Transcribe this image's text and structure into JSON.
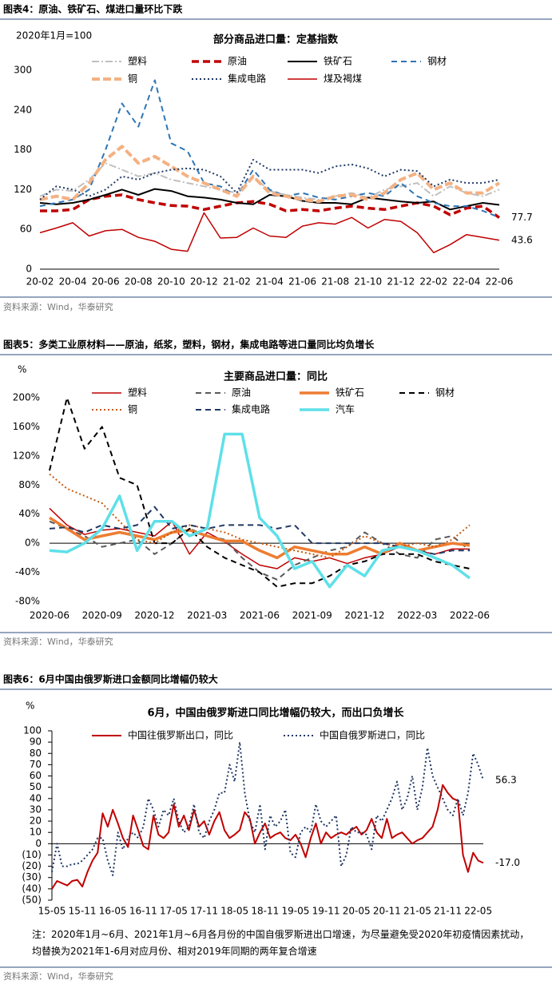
{
  "figures": [
    {
      "header": "图表4：原油、铁矿石、煤进口量环比下跌",
      "source": "资料来源：Wind，华泰研究"
    },
    {
      "header": "图表5：多类工业原材料——原油，纸浆，塑料，钢材，集成电路等进口量同比均负增长",
      "source": "资料来源：Wind，华泰研究"
    },
    {
      "header": "图表6：6月中国由俄罗斯进口金额同比增幅仍较大",
      "source": "资料来源：Wind，华泰研究",
      "note": "注：2020年1月~6月、2021年1月~6月各月份的中国自俄罗斯进出口增速，为尽量避免受2020年初疫情因素扰动，均替换为2021年1-6月对应月份、相对2019年同期的两年复合增速"
    }
  ],
  "chart_data": [
    {
      "type": "line",
      "title": "部分商品进口量：定基指数",
      "y_label": "2020年1月=100",
      "categories": [
        "20-02",
        null,
        "20-04",
        null,
        "20-06",
        null,
        "20-08",
        null,
        "20-10",
        null,
        "20-12",
        null,
        "21-02",
        null,
        "21-04",
        null,
        "21-06",
        null,
        "21-08",
        null,
        "21-10",
        null,
        "21-12",
        null,
        "22-02",
        null,
        "22-04",
        null,
        "22-06"
      ],
      "ylim": [
        0,
        300
      ],
      "yticks": [
        0,
        60,
        120,
        180,
        240,
        300
      ],
      "grid": false,
      "series": [
        {
          "name": "塑料",
          "color": "#bfbfbf",
          "style": "dashdot",
          "values": [
            110,
            120,
            118,
            135,
            160,
            150,
            140,
            145,
            135,
            130,
            125,
            120,
            115,
            140,
            118,
            112,
            108,
            105,
            110,
            115,
            108,
            120,
            125,
            130,
            110,
            125,
            115,
            110,
            120
          ]
        },
        {
          "name": "原油",
          "color": "#c00000",
          "style": "thickdash",
          "end_label": true,
          "values": [
            88,
            88,
            90,
            105,
            110,
            112,
            105,
            100,
            96,
            95,
            90,
            95,
            100,
            102,
            98,
            88,
            90,
            88,
            92,
            95,
            92,
            90,
            95,
            100,
            95,
            82,
            92,
            95,
            77.7
          ]
        },
        {
          "name": "铁矿石",
          "color": "#000000",
          "style": "solid",
          "values": [
            100,
            98,
            100,
            105,
            112,
            120,
            112,
            121,
            118,
            110,
            108,
            105,
            100,
            98,
            112,
            110,
            103,
            100,
            100,
            98,
            108,
            105,
            102,
            100,
            102,
            90,
            95,
            100,
            97
          ]
        },
        {
          "name": "钢材",
          "color": "#2e75b6",
          "style": "dash",
          "values": [
            95,
            100,
            105,
            120,
            180,
            250,
            215,
            285,
            190,
            178,
            130,
            125,
            110,
            150,
            120,
            110,
            115,
            108,
            105,
            110,
            115,
            110,
            130,
            110,
            100,
            95,
            95,
            88,
            78
          ]
        },
        {
          "name": "铜",
          "color": "#f4b183",
          "style": "double",
          "values": [
            105,
            110,
            105,
            130,
            165,
            185,
            160,
            170,
            155,
            140,
            130,
            120,
            110,
            140,
            115,
            110,
            105,
            102,
            110,
            112,
            105,
            115,
            135,
            145,
            120,
            130,
            115,
            115,
            130
          ]
        },
        {
          "name": "集成电路",
          "color": "#1f3864",
          "style": "dot",
          "values": [
            105,
            125,
            120,
            110,
            120,
            140,
            135,
            145,
            150,
            152,
            150,
            140,
            115,
            165,
            150,
            150,
            150,
            145,
            155,
            158,
            152,
            140,
            150,
            148,
            125,
            135,
            130,
            130,
            135
          ]
        },
        {
          "name": "煤及褐煤",
          "color": "#c00000",
          "style": "thin",
          "end_label": true,
          "values": [
            55,
            62,
            70,
            50,
            58,
            60,
            48,
            42,
            30,
            27,
            85,
            47,
            48,
            62,
            50,
            48,
            65,
            70,
            68,
            78,
            62,
            75,
            72,
            55,
            25,
            37,
            52,
            48,
            43.6
          ]
        }
      ]
    },
    {
      "type": "line",
      "title": "主要商品进口量：同比",
      "y_label": "%",
      "categories": [
        "2020-06",
        null,
        null,
        "2020-09",
        null,
        null,
        "2020-12",
        null,
        null,
        "2021-03",
        null,
        null,
        "2021-06",
        null,
        null,
        "2021-09",
        null,
        null,
        "2021-12",
        null,
        null,
        "2022-03",
        null,
        null,
        "2022-06"
      ],
      "ylim": [
        -80,
        200
      ],
      "yticks": [
        {
          "value": -80,
          "label": "-80%"
        },
        {
          "value": -40,
          "label": "-40%"
        },
        {
          "value": 0,
          "label": "0%"
        },
        {
          "value": 40,
          "label": "40%"
        },
        {
          "value": 80,
          "label": "80%"
        },
        {
          "value": 120,
          "label": "120%"
        },
        {
          "value": 160,
          "label": "160%"
        },
        {
          "value": 200,
          "label": "200%"
        }
      ],
      "grid": false,
      "zero_line": true,
      "series": [
        {
          "name": "塑料",
          "color": "#c00000",
          "style": "thin",
          "values": [
            48,
            25,
            12,
            18,
            20,
            15,
            10,
            30,
            -15,
            15,
            2,
            -15,
            -30,
            -35,
            -20,
            -25,
            -20,
            -28,
            -20,
            -15,
            -5,
            -10,
            -15,
            -8,
            -8
          ]
        },
        {
          "name": "原油",
          "color": "#595959",
          "style": "dash",
          "values": [
            30,
            20,
            10,
            -5,
            0,
            5,
            -15,
            0,
            20,
            10,
            5,
            -20,
            -40,
            -50,
            -30,
            -20,
            -10,
            -5,
            15,
            0,
            -15,
            -20,
            5,
            10,
            -10
          ]
        },
        {
          "name": "铁矿石",
          "color": "#ed7d31",
          "style": "thick",
          "values": [
            35,
            20,
            5,
            10,
            15,
            10,
            5,
            15,
            18,
            10,
            3,
            3,
            -10,
            -20,
            -5,
            -10,
            -15,
            -15,
            -5,
            -15,
            0,
            -10,
            -5,
            0,
            -3
          ]
        },
        {
          "name": "钢材",
          "color": "#000000",
          "style": "dash",
          "values": [
            100,
            200,
            130,
            160,
            90,
            80,
            0,
            0,
            20,
            -5,
            -20,
            -30,
            -40,
            -60,
            -55,
            -55,
            -45,
            -30,
            -25,
            -15,
            -15,
            -15,
            -25,
            -30,
            -35
          ]
        },
        {
          "name": "铜",
          "color": "#c55a11",
          "style": "dot",
          "values": [
            95,
            75,
            65,
            55,
            30,
            5,
            0,
            15,
            25,
            20,
            15,
            5,
            0,
            -5,
            -10,
            -15,
            -20,
            -5,
            10,
            0,
            -5,
            0,
            -5,
            5,
            25
          ]
        },
        {
          "name": "集成电路",
          "color": "#1f3864",
          "style": "dash",
          "values": [
            20,
            22,
            15,
            25,
            20,
            25,
            50,
            20,
            25,
            20,
            25,
            25,
            25,
            20,
            25,
            0,
            0,
            0,
            0,
            0,
            -5,
            -10,
            -15,
            -10,
            -10
          ]
        },
        {
          "name": "汽车",
          "color": "#5ee0e8",
          "style": "thick",
          "values": [
            -10,
            -12,
            0,
            20,
            65,
            -10,
            30,
            30,
            10,
            20,
            150,
            150,
            35,
            10,
            -35,
            -25,
            -60,
            -30,
            -45,
            -10,
            -5,
            -10,
            -20,
            -30,
            -48
          ]
        }
      ]
    },
    {
      "type": "line",
      "title": "6月，中国由俄罗斯进口同比增幅仍较大，而出口负增长",
      "y_label": "%",
      "categories": [
        "15-05",
        null,
        null,
        null,
        null,
        null,
        "15-11",
        null,
        null,
        null,
        null,
        null,
        "16-05",
        null,
        null,
        null,
        null,
        null,
        "16-11",
        null,
        null,
        null,
        null,
        null,
        "17-05",
        null,
        null,
        null,
        null,
        null,
        "17-11",
        null,
        null,
        null,
        null,
        null,
        "18-05",
        null,
        null,
        null,
        null,
        null,
        "18-11",
        null,
        null,
        null,
        null,
        null,
        "19-05",
        null,
        null,
        null,
        null,
        null,
        "19-11",
        null,
        null,
        null,
        null,
        null,
        "20-05",
        null,
        null,
        null,
        null,
        null,
        "20-11",
        null,
        null,
        null,
        null,
        null,
        "21-05",
        null,
        null,
        null,
        null,
        null,
        "21-11",
        null,
        null,
        null,
        null,
        null,
        "22-05",
        null
      ],
      "ylim": [
        -50,
        100
      ],
      "yticks": [
        {
          "value": -50,
          "label": "(50)"
        },
        {
          "value": -40,
          "label": "(40)"
        },
        {
          "value": -30,
          "label": "(30)"
        },
        {
          "value": -20,
          "label": "(20)"
        },
        {
          "value": -10,
          "label": "(10)"
        },
        0,
        10,
        20,
        30,
        40,
        50,
        60,
        70,
        80,
        90,
        100
      ],
      "grid": false,
      "zero_line": true,
      "tick_marks": true,
      "series": [
        {
          "name": "中国往俄罗斯出口，同比",
          "color": "#c00000",
          "style": "solid",
          "end_label": true,
          "values": [
            -40,
            -33,
            -35,
            -37,
            -33,
            -32,
            -38,
            -25,
            -15,
            -8,
            27,
            15,
            30,
            18,
            5,
            -3,
            25,
            12,
            -2,
            -5,
            25,
            8,
            5,
            10,
            35,
            15,
            25,
            12,
            30,
            15,
            20,
            8,
            20,
            28,
            12,
            5,
            8,
            12,
            28,
            22,
            0,
            10,
            18,
            5,
            8,
            10,
            5,
            3,
            8,
            0,
            -12,
            5,
            18,
            0,
            10,
            5,
            8,
            10,
            8,
            12,
            15,
            8,
            12,
            22,
            10,
            5,
            22,
            5,
            8,
            10,
            5,
            0,
            3,
            5,
            10,
            15,
            30,
            52,
            45,
            40,
            38,
            -10,
            -25,
            -8,
            -15,
            -17
          ],
          "value_labels": [
            null,
            null,
            null,
            null,
            null,
            null,
            null,
            null,
            null,
            null,
            null,
            null,
            null,
            null,
            null,
            null,
            null,
            null,
            null,
            null,
            null,
            null,
            null,
            null,
            null,
            null,
            null,
            null,
            null,
            null,
            null,
            null,
            null,
            null,
            null,
            null,
            null,
            null,
            null,
            null,
            null,
            null,
            null,
            null,
            null,
            null,
            null,
            null,
            null,
            null,
            null,
            null,
            null,
            null,
            null,
            null,
            null,
            null,
            null,
            null,
            null,
            null,
            null,
            null,
            null,
            null,
            null,
            null,
            null,
            null,
            null,
            null,
            null,
            null,
            null,
            null,
            null,
            null,
            null,
            null,
            null,
            null,
            null,
            null,
            null,
            "-17.0"
          ]
        },
        {
          "name": "中国自俄罗斯进口，同比",
          "color": "#1f3864",
          "style": "dot",
          "end_label": true,
          "values": [
            -25,
            0,
            -20,
            -20,
            -18,
            -18,
            -15,
            -10,
            -5,
            5,
            5,
            -15,
            -28,
            10,
            -5,
            5,
            10,
            5,
            15,
            40,
            30,
            15,
            30,
            25,
            40,
            20,
            10,
            15,
            35,
            10,
            5,
            20,
            30,
            45,
            45,
            70,
            55,
            90,
            45,
            20,
            10,
            35,
            -5,
            25,
            15,
            20,
            30,
            -8,
            -12,
            10,
            15,
            10,
            35,
            20,
            15,
            20,
            25,
            -20,
            -10,
            15,
            10,
            10,
            8,
            -5,
            25,
            20,
            30,
            40,
            55,
            30,
            40,
            60,
            30,
            50,
            85,
            60,
            50,
            40,
            30,
            25,
            40,
            25,
            45,
            80,
            70,
            56.3
          ]
        }
      ]
    }
  ]
}
